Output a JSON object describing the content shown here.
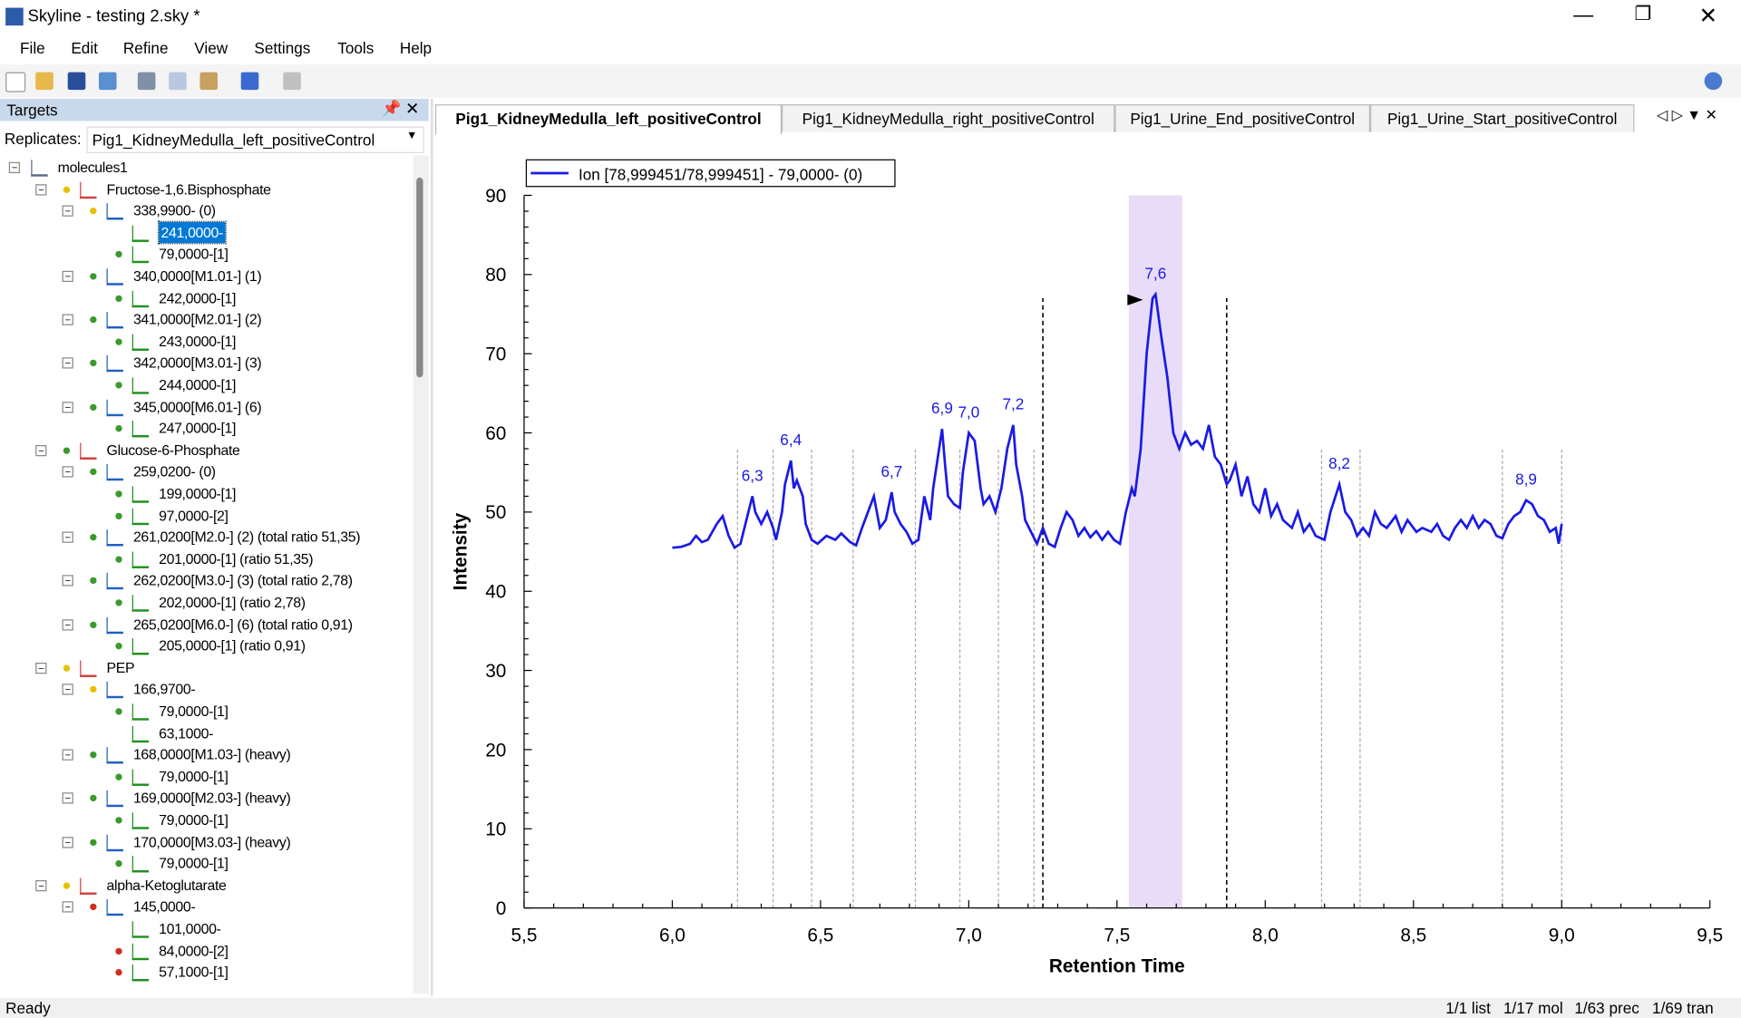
{
  "window": {
    "title": "Skyline - testing 2.sky *"
  },
  "menu": [
    "File",
    "Edit",
    "Refine",
    "View",
    "Settings",
    "Tools",
    "Help"
  ],
  "targets": {
    "title": "Targets",
    "replicates_label": "Replicates:",
    "replicate": "Pig1_KidneyMedulla_left_positiveControl",
    "tree": [
      {
        "level": 0,
        "text": "molecules1",
        "dot": null
      },
      {
        "level": 1,
        "text": "Fructose-1,6.Bisphosphate",
        "dot": "#e8c000"
      },
      {
        "level": 2,
        "text": "338,9900- (0)",
        "dot": "#e8c000"
      },
      {
        "level": 3,
        "text": "241,0000-",
        "dot": null,
        "selected": true
      },
      {
        "level": 3,
        "text": "79,0000-[1]",
        "dot": "#3a9a2a"
      },
      {
        "level": 2,
        "text": "340,0000[M1.01-] (1)",
        "dot": "#3a9a2a"
      },
      {
        "level": 3,
        "text": "242,0000-[1]",
        "dot": "#3a9a2a"
      },
      {
        "level": 2,
        "text": "341,0000[M2.01-] (2)",
        "dot": "#3a9a2a"
      },
      {
        "level": 3,
        "text": "243,0000-[1]",
        "dot": "#3a9a2a"
      },
      {
        "level": 2,
        "text": "342,0000[M3.01-] (3)",
        "dot": "#3a9a2a"
      },
      {
        "level": 3,
        "text": "244,0000-[1]",
        "dot": "#3a9a2a"
      },
      {
        "level": 2,
        "text": "345,0000[M6.01-] (6)",
        "dot": "#3a9a2a"
      },
      {
        "level": 3,
        "text": "247,0000-[1]",
        "dot": "#3a9a2a"
      },
      {
        "level": 1,
        "text": "Glucose-6-Phosphate",
        "dot": "#3a9a2a"
      },
      {
        "level": 2,
        "text": "259,0200- (0)",
        "dot": "#3a9a2a"
      },
      {
        "level": 3,
        "text": "199,0000-[1]",
        "dot": "#3a9a2a"
      },
      {
        "level": 3,
        "text": "97,0000-[2]",
        "dot": "#3a9a2a"
      },
      {
        "level": 2,
        "text": "261,0200[M2.0-] (2) (total ratio 51,35)",
        "dot": "#3a9a2a"
      },
      {
        "level": 3,
        "text": "201,0000-[1] (ratio 51,35)",
        "dot": "#3a9a2a"
      },
      {
        "level": 2,
        "text": "262,0200[M3.0-] (3) (total ratio 2,78)",
        "dot": "#3a9a2a"
      },
      {
        "level": 3,
        "text": "202,0000-[1] (ratio 2,78)",
        "dot": "#3a9a2a"
      },
      {
        "level": 2,
        "text": "265,0200[M6.0-] (6) (total ratio 0,91)",
        "dot": "#3a9a2a"
      },
      {
        "level": 3,
        "text": "205,0000-[1] (ratio 0,91)",
        "dot": "#3a9a2a"
      },
      {
        "level": 1,
        "text": "PEP",
        "dot": "#e8c000"
      },
      {
        "level": 2,
        "text": "166,9700-",
        "dot": "#e8c000"
      },
      {
        "level": 3,
        "text": "79,0000-[1]",
        "dot": "#3a9a2a"
      },
      {
        "level": 3,
        "text": "63,1000-",
        "dot": null
      },
      {
        "level": 2,
        "text": "168,0000[M1.03-] (heavy)",
        "dot": "#3a9a2a"
      },
      {
        "level": 3,
        "text": "79,0000-[1]",
        "dot": "#3a9a2a"
      },
      {
        "level": 2,
        "text": "169,0000[M2.03-] (heavy)",
        "dot": "#3a9a2a"
      },
      {
        "level": 3,
        "text": "79,0000-[1]",
        "dot": "#3a9a2a"
      },
      {
        "level": 2,
        "text": "170,0000[M3.03-] (heavy)",
        "dot": "#3a9a2a"
      },
      {
        "level": 3,
        "text": "79,0000-[1]",
        "dot": "#3a9a2a"
      },
      {
        "level": 1,
        "text": "alpha-Ketoglutarate",
        "dot": "#e8c000"
      },
      {
        "level": 2,
        "text": "145,0000-",
        "dot": "#d03020"
      },
      {
        "level": 3,
        "text": "101,0000-",
        "dot": null
      },
      {
        "level": 3,
        "text": "84,0000-[2]",
        "dot": "#d03020"
      },
      {
        "level": 3,
        "text": "57,1000-[1]",
        "dot": "#d03020"
      }
    ]
  },
  "tabs": [
    "Pig1_KidneyMedulla_left_positiveControl",
    "Pig1_KidneyMedulla_right_positiveControl",
    "Pig1_Urine_End_positiveControl",
    "Pig1_Urine_Start_positiveControl"
  ],
  "chart": {
    "type": "line",
    "x_label": "Retention Time",
    "y_label": "Intensity",
    "xlim": [
      5.5,
      9.5
    ],
    "ylim": [
      0,
      90
    ],
    "xticks": [
      {
        "value": 5.5,
        "label": "5,5"
      },
      {
        "value": 6.0,
        "label": "6,0"
      },
      {
        "value": 6.5,
        "label": "6,5"
      },
      {
        "value": 7.0,
        "label": "7,0"
      },
      {
        "value": 7.5,
        "label": "7,5"
      },
      {
        "value": 8.0,
        "label": "8,0"
      },
      {
        "value": 8.5,
        "label": "8,5"
      },
      {
        "value": 9.0,
        "label": "9,0"
      },
      {
        "value": 9.5,
        "label": "9,5"
      }
    ],
    "yticks": [
      0,
      10,
      20,
      30,
      40,
      50,
      60,
      70,
      80,
      90
    ],
    "series": [
      {
        "name": "Ion [78,999451/78,999451] - 79,0000- (0)",
        "color": "#1a1ae6",
        "x": [
          6.0,
          6.03,
          6.06,
          6.08,
          6.1,
          6.12,
          6.15,
          6.17,
          6.19,
          6.21,
          6.23,
          6.25,
          6.27,
          6.28,
          6.3,
          6.32,
          6.34,
          6.35,
          6.37,
          6.38,
          6.4,
          6.41,
          6.42,
          6.44,
          6.45,
          6.47,
          6.49,
          6.52,
          6.55,
          6.57,
          6.6,
          6.62,
          6.64,
          6.66,
          6.68,
          6.7,
          6.72,
          6.74,
          6.75,
          6.77,
          6.79,
          6.81,
          6.83,
          6.85,
          6.87,
          6.88,
          6.91,
          6.92,
          6.93,
          6.95,
          6.97,
          6.98,
          7.0,
          7.02,
          7.04,
          7.05,
          7.07,
          7.09,
          7.11,
          7.13,
          7.15,
          7.16,
          7.18,
          7.19,
          7.21,
          7.23,
          7.25,
          7.27,
          7.29,
          7.31,
          7.33,
          7.35,
          7.37,
          7.39,
          7.41,
          7.43,
          7.45,
          7.47,
          7.49,
          7.51,
          7.53,
          7.55,
          7.56,
          7.58,
          7.6,
          7.62,
          7.63,
          7.65,
          7.67,
          7.69,
          7.71,
          7.73,
          7.75,
          7.77,
          7.79,
          7.81,
          7.83,
          7.85,
          7.87,
          7.88,
          7.9,
          7.92,
          7.94,
          7.96,
          7.98,
          8.0,
          8.02,
          8.04,
          8.06,
          8.09,
          8.11,
          8.13,
          8.15,
          8.17,
          8.2,
          8.22,
          8.25,
          8.27,
          8.29,
          8.31,
          8.33,
          8.35,
          8.37,
          8.39,
          8.41,
          8.44,
          8.46,
          8.48,
          8.51,
          8.53,
          8.56,
          8.58,
          8.6,
          8.62,
          8.64,
          8.66,
          8.68,
          8.7,
          8.72,
          8.74,
          8.76,
          8.78,
          8.8,
          8.82,
          8.84,
          8.86,
          8.88,
          8.9,
          8.92,
          8.94,
          8.96,
          8.98,
          8.99,
          9.0
        ],
        "values": [
          45.5,
          45.6,
          46,
          47,
          46.2,
          46.5,
          48.5,
          49.5,
          47,
          45.5,
          46,
          49,
          52,
          50,
          48.5,
          50,
          48,
          46.5,
          50,
          53.5,
          56.5,
          53,
          54,
          52,
          48.5,
          46.5,
          46,
          47,
          46.5,
          47.3,
          46.2,
          45.8,
          48,
          50,
          52,
          48,
          49,
          52.5,
          50,
          48.5,
          47.5,
          46,
          46.5,
          52,
          49,
          53,
          60.5,
          56,
          52,
          51,
          50.5,
          55,
          60,
          59,
          53,
          51,
          52,
          50,
          53,
          58,
          61,
          56,
          52,
          49,
          47.5,
          46,
          48,
          46,
          45.6,
          48,
          50,
          49,
          47,
          48,
          46.8,
          47.6,
          46.5,
          47.5,
          46.5,
          46,
          50,
          53,
          52,
          58,
          70,
          77,
          77.5,
          72,
          67,
          60,
          58,
          60,
          58.5,
          59,
          58,
          61,
          57,
          56,
          53.5,
          54,
          56,
          52,
          54.5,
          51,
          50,
          53,
          49.5,
          51,
          49,
          48,
          50,
          47.5,
          48.5,
          47,
          46.5,
          50,
          53.5,
          50,
          49,
          47,
          48,
          47,
          50,
          48.5,
          48,
          49.5,
          47.5,
          49,
          47.5,
          48,
          47.5,
          48.5,
          47,
          46.5,
          48,
          49,
          48,
          49.5,
          48,
          49,
          48.5,
          47,
          46.7,
          48.5,
          49.5,
          50,
          51.5,
          51,
          49.5,
          49,
          47.5,
          48,
          46,
          48.5
        ]
      }
    ],
    "peak_labels": [
      {
        "x": 6.27,
        "y": 52,
        "label": "6,3"
      },
      {
        "x": 6.4,
        "y": 56.5,
        "label": "6,4"
      },
      {
        "x": 6.74,
        "y": 52.5,
        "label": "6,7"
      },
      {
        "x": 6.91,
        "y": 60.5,
        "label": "6,9"
      },
      {
        "x": 7.0,
        "y": 60,
        "label": "7,0"
      },
      {
        "x": 7.15,
        "y": 61,
        "label": "7,2"
      },
      {
        "x": 7.63,
        "y": 77.5,
        "label": "7,6"
      },
      {
        "x": 8.25,
        "y": 53.5,
        "label": "8,2"
      },
      {
        "x": 8.88,
        "y": 51.5,
        "label": "8,9"
      }
    ],
    "peak_boundaries": [
      6.22,
      6.34,
      6.47,
      6.61,
      6.82,
      6.97,
      7.1,
      7.22,
      8.19,
      8.32,
      8.8,
      9.0
    ],
    "integration": [
      7.25,
      7.87
    ],
    "highlight": [
      7.54,
      7.72
    ]
  },
  "status": {
    "text": "Ready",
    "counts": [
      "1/1 list",
      "1/17 mol",
      "1/63 prec",
      "1/69 tran"
    ]
  }
}
